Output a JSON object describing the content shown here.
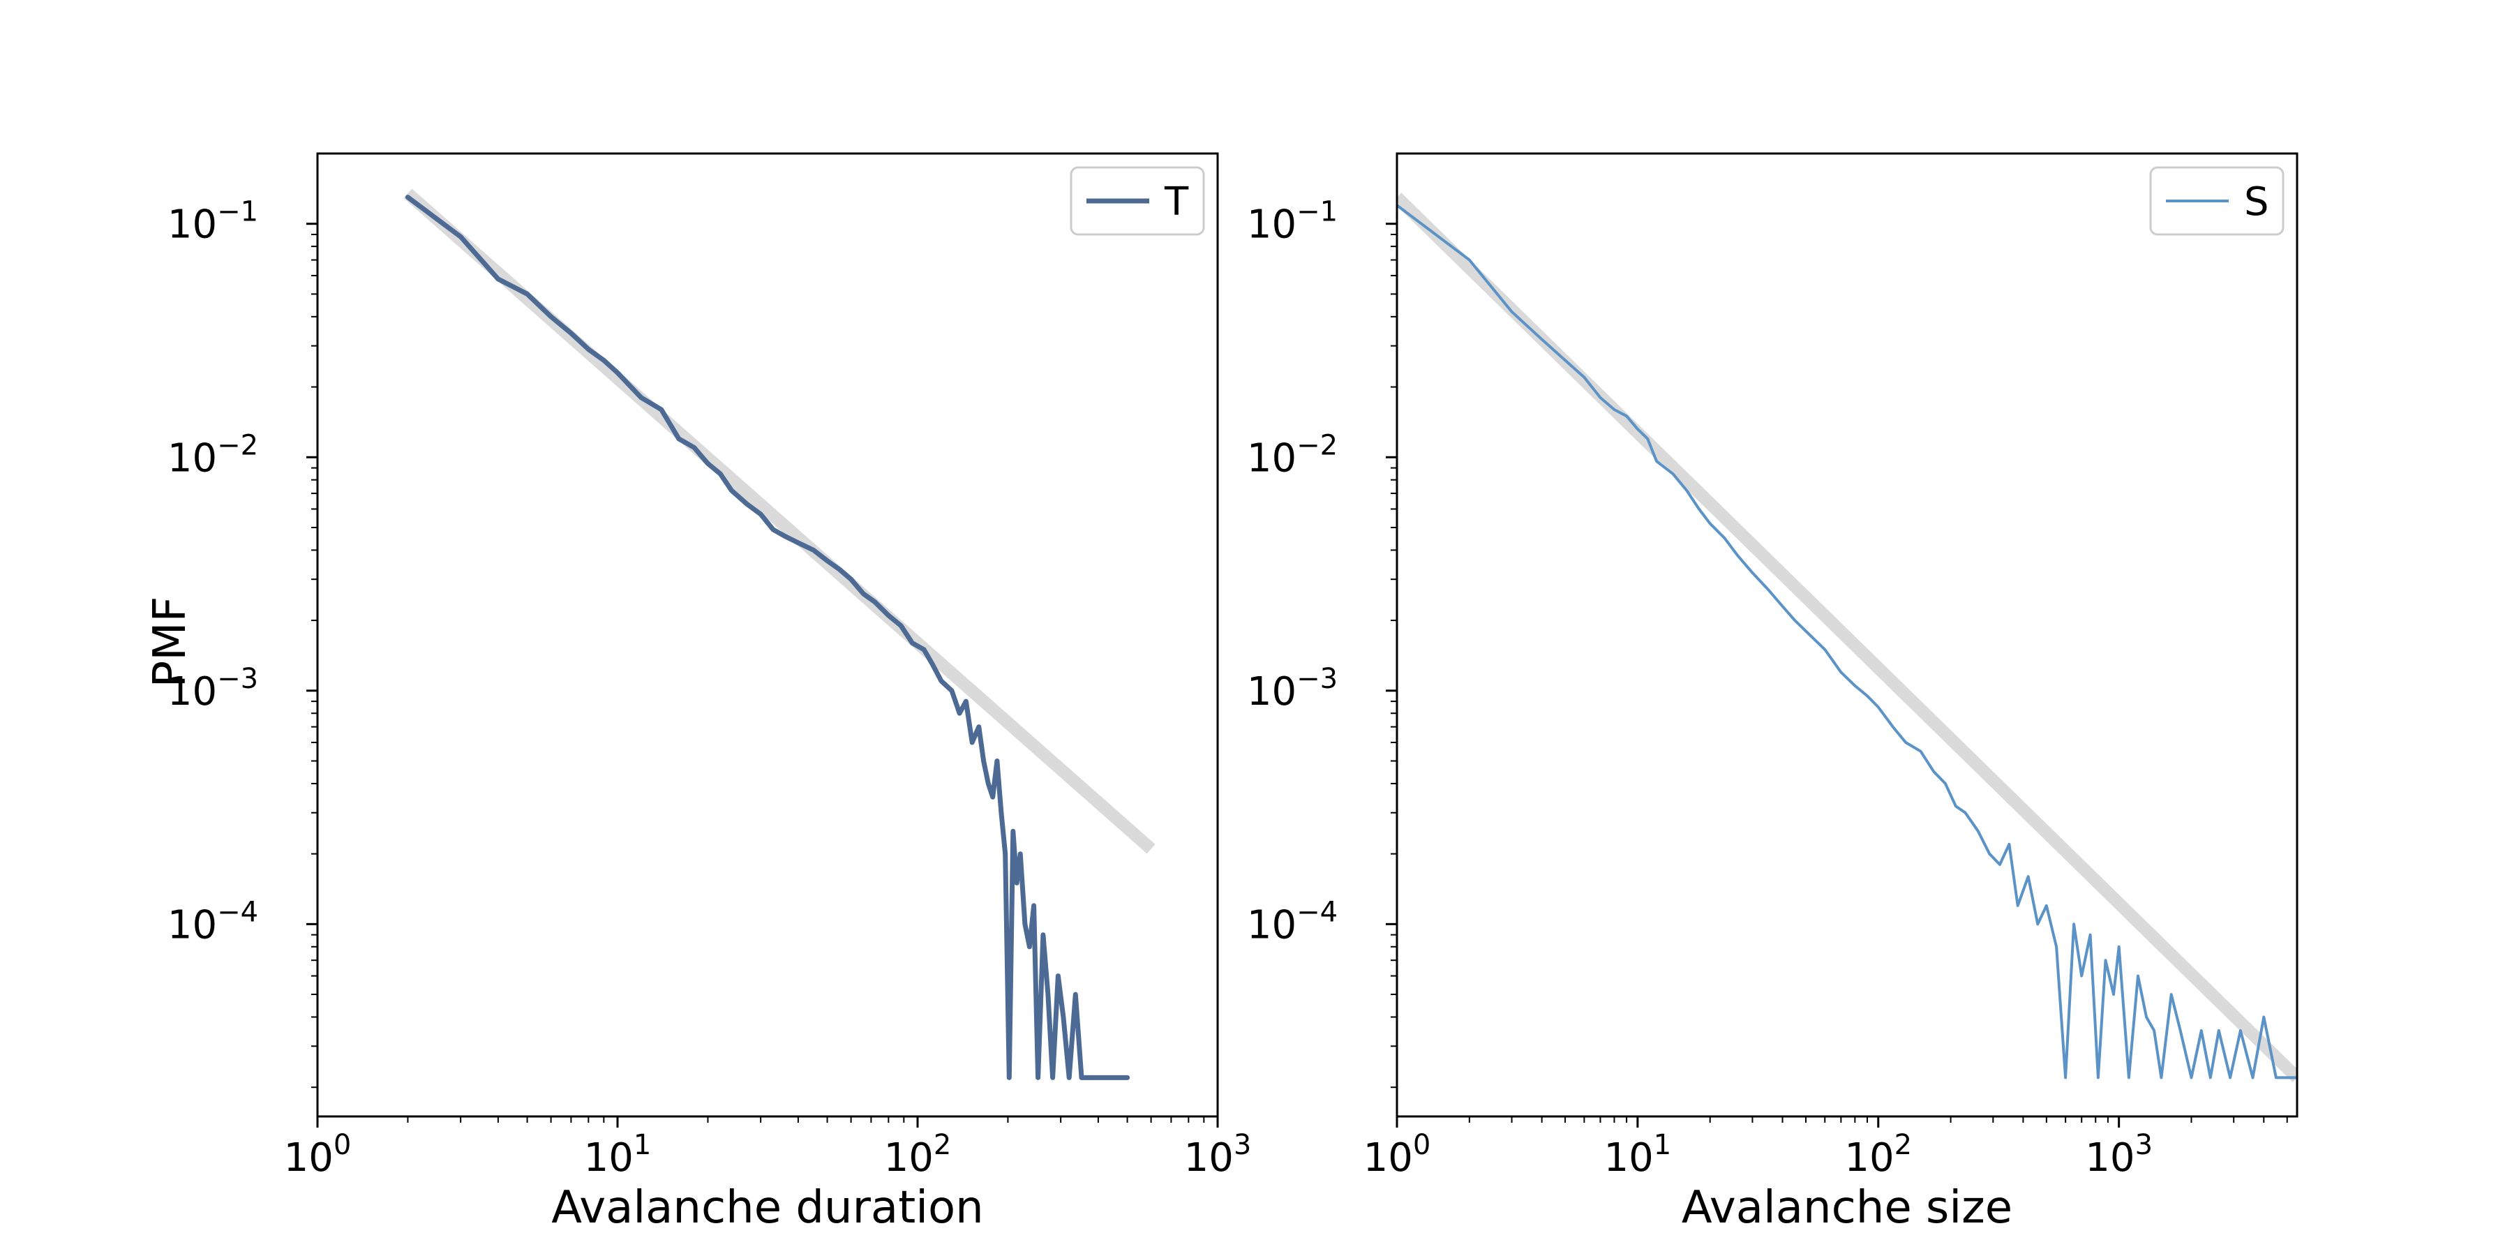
{
  "figure": {
    "ylabel": "PMF"
  },
  "chart_data": [
    {
      "type": "line",
      "xlabel": "Avalanche duration",
      "ylabel": "PMF",
      "xscale": "log",
      "yscale": "log",
      "xlim": [
        1,
        1000
      ],
      "ylim": [
        1.5e-05,
        0.2
      ],
      "xticks": [
        {
          "base": "10",
          "exp": "0",
          "value": 1
        },
        {
          "base": "10",
          "exp": "1",
          "value": 10
        },
        {
          "base": "10",
          "exp": "2",
          "value": 100
        },
        {
          "base": "10",
          "exp": "3",
          "value": 1000
        }
      ],
      "yticks": [
        {
          "base": "10",
          "exp": "−1",
          "value": 0.1
        },
        {
          "base": "10",
          "exp": "−2",
          "value": 0.01
        },
        {
          "base": "10",
          "exp": "−3",
          "value": 0.001
        },
        {
          "base": "10",
          "exp": "−4",
          "value": 0.0001
        }
      ],
      "grid": false,
      "legend": {
        "position": "top-right",
        "entries": [
          "T"
        ]
      },
      "series": [
        {
          "name": "T",
          "color": "#4c6a94",
          "x": [
            2,
            3,
            4,
            5,
            6,
            7,
            8,
            9,
            10,
            12,
            14,
            16,
            18,
            20,
            22,
            24,
            27,
            30,
            33,
            36,
            40,
            45,
            50,
            55,
            60,
            66,
            72,
            80,
            88,
            96,
            105,
            112,
            120,
            130,
            138,
            145,
            152,
            160,
            166,
            172,
            178,
            184,
            190,
            196,
            202,
            208,
            214,
            220,
            228,
            236,
            244,
            252,
            262,
            272,
            282,
            294,
            306,
            320,
            336,
            352,
            500
          ],
          "y": [
            0.13,
            0.088,
            0.058,
            0.05,
            0.04,
            0.034,
            0.029,
            0.026,
            0.023,
            0.018,
            0.016,
            0.012,
            0.011,
            0.0094,
            0.0085,
            0.0072,
            0.0063,
            0.0057,
            0.0049,
            0.0046,
            0.0043,
            0.004,
            0.0036,
            0.0033,
            0.003,
            0.0026,
            0.0024,
            0.0021,
            0.0019,
            0.0016,
            0.0015,
            0.0013,
            0.0011,
            0.001,
            0.0008,
            0.0009,
            0.0006,
            0.0007,
            0.0005,
            0.0004,
            0.00035,
            0.0005,
            0.0003,
            0.0002,
            2.2e-05,
            0.00025,
            0.00015,
            0.0002,
            0.0001,
            8e-05,
            0.00012,
            2.2e-05,
            9e-05,
            5e-05,
            2.2e-05,
            6e-05,
            4e-05,
            2.2e-05,
            5e-05,
            2.2e-05,
            2.2e-05
          ]
        },
        {
          "name": "",
          "role": "power-law fit",
          "color": "#d3d3d3",
          "x": [
            2,
            600
          ],
          "y": [
            0.135,
            0.00021
          ]
        }
      ]
    },
    {
      "type": "line",
      "xlabel": "Avalanche size",
      "ylabel": "",
      "xscale": "log",
      "yscale": "log",
      "xlim": [
        1,
        5500
      ],
      "ylim": [
        1.5e-05,
        0.2
      ],
      "xticks": [
        {
          "base": "10",
          "exp": "0",
          "value": 1
        },
        {
          "base": "10",
          "exp": "1",
          "value": 10
        },
        {
          "base": "10",
          "exp": "2",
          "value": 100
        },
        {
          "base": "10",
          "exp": "3",
          "value": 1000
        }
      ],
      "yticks": [
        {
          "base": "10",
          "exp": "−1",
          "value": 0.1
        },
        {
          "base": "10",
          "exp": "−2",
          "value": 0.01
        },
        {
          "base": "10",
          "exp": "−3",
          "value": 0.001
        },
        {
          "base": "10",
          "exp": "−4",
          "value": 0.0001
        }
      ],
      "grid": false,
      "legend": {
        "position": "top-right",
        "entries": [
          "S"
        ]
      },
      "series": [
        {
          "name": "S",
          "color": "#5b93c7",
          "x": [
            1,
            2,
            3,
            4,
            5,
            6,
            7,
            8,
            9,
            10,
            11,
            12,
            14,
            16,
            18,
            20,
            23,
            26,
            30,
            35,
            40,
            45,
            50,
            60,
            70,
            80,
            90,
            100,
            115,
            130,
            150,
            170,
            190,
            210,
            230,
            260,
            290,
            320,
            350,
            380,
            420,
            460,
            500,
            550,
            600,
            650,
            700,
            760,
            820,
            880,
            950,
            1000,
            1100,
            1200,
            1300,
            1400,
            1500,
            1650,
            1800,
            2000,
            2200,
            2400,
            2600,
            2900,
            3200,
            3600,
            4000,
            4500,
            5000,
            5500
          ],
          "y": [
            0.12,
            0.07,
            0.042,
            0.032,
            0.026,
            0.022,
            0.018,
            0.016,
            0.015,
            0.0132,
            0.012,
            0.0096,
            0.0085,
            0.0072,
            0.006,
            0.0052,
            0.0045,
            0.0038,
            0.0032,
            0.0027,
            0.0023,
            0.002,
            0.0018,
            0.0015,
            0.0012,
            0.00105,
            0.00095,
            0.00085,
            0.0007,
            0.0006,
            0.00055,
            0.00045,
            0.0004,
            0.00032,
            0.0003,
            0.00025,
            0.0002,
            0.00018,
            0.00022,
            0.00012,
            0.00016,
            0.0001,
            0.00012,
            8e-05,
            2.2e-05,
            0.0001,
            6e-05,
            9e-05,
            2.2e-05,
            7e-05,
            5e-05,
            8e-05,
            2.2e-05,
            6e-05,
            4e-05,
            3.5e-05,
            2.2e-05,
            5e-05,
            3.5e-05,
            2.2e-05,
            3.5e-05,
            2.2e-05,
            3.5e-05,
            2.2e-05,
            3.5e-05,
            2.2e-05,
            4e-05,
            2.2e-05,
            2.2e-05,
            2.2e-05
          ]
        },
        {
          "name": "",
          "role": "power-law fit",
          "color": "#d3d3d3",
          "x": [
            1,
            5500
          ],
          "y": [
            0.13,
            2.2e-05
          ]
        }
      ]
    }
  ]
}
